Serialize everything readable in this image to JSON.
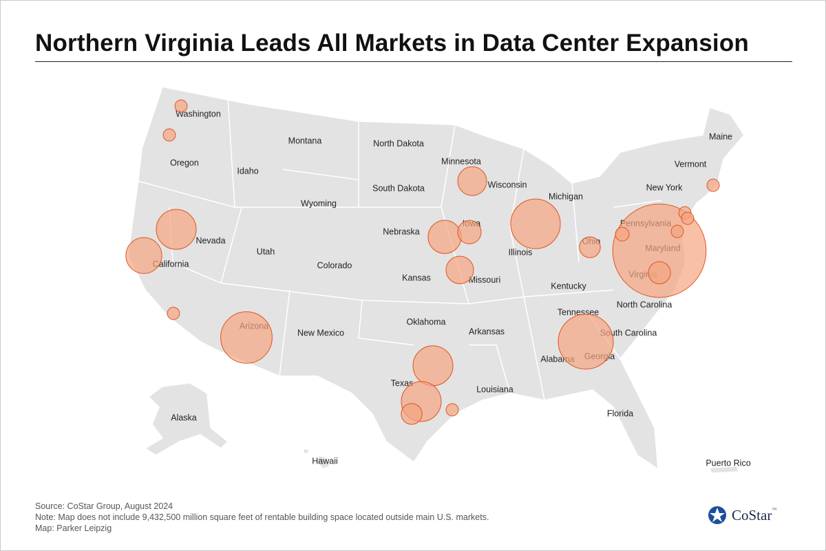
{
  "header": {
    "title": "Northern Virginia Leads All Markets in Data Center Expansion"
  },
  "map": {
    "labels": [
      "Washington",
      "Oregon",
      "California",
      "Nevada",
      "Idaho",
      "Montana",
      "Wyoming",
      "Utah",
      "Arizona",
      "Colorado",
      "New Mexico",
      "North Dakota",
      "South Dakota",
      "Nebraska",
      "Kansas",
      "Oklahoma",
      "Texas",
      "Minnesota",
      "Iowa",
      "Missouri",
      "Arkansas",
      "Louisiana",
      "Wisconsin",
      "Illinois",
      "Michigan",
      "Ohio",
      "Kentucky",
      "Tennessee",
      "Alabama",
      "Georgia",
      "Florida",
      "South Carolina",
      "North Carolina",
      "Virginia",
      "Maryland",
      "Pennsylvania",
      "New York",
      "Vermont",
      "Maine",
      "Alaska",
      "Hawaii",
      "Puerto Rico"
    ],
    "bubble_color": "#f4a582",
    "bubbles": [
      46,
      14,
      16,
      13,
      8.4,
      8.4,
      8.4,
      6.8,
      5.8,
      4.4,
      2.9,
      4,
      2.3,
      2.6,
      2.3,
      0.8,
      0.8,
      0.8,
      0.8,
      0.8,
      1,
      0.8,
      0.8,
      0.8
    ]
  },
  "footer": {
    "source": "Source: CoStar Group, August 2024",
    "note": "Note: Map does not include 9,432,500 million square feet of rentable building space located outside main U.S. markets.",
    "credit": "Map: Parker Leipzig"
  },
  "logo": {
    "text": "CoStar",
    "mark": "™"
  }
}
